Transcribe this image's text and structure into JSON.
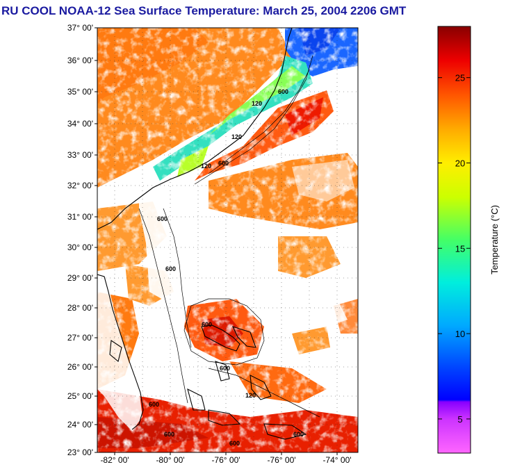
{
  "title": "RU COOL  NOAA-12  Sea Surface Temperature:  March 25, 2004 2206 GMT",
  "latitude_labels": [
    "37° 00'",
    "36° 00'",
    "35° 00'",
    "34° 00'",
    "33° 00'",
    "32° 00'",
    "31° 00'",
    "30° 00'",
    "29° 00'",
    "28° 00'",
    "27° 00'",
    "26° 00'",
    "25° 00'",
    "24° 00'",
    "23° 00'"
  ],
  "longitude_labels": [
    "-82° 00'",
    "-80° 00'",
    "-76° 00'",
    "-76° 00'",
    "-74° 00'"
  ],
  "depth_contour_labels": [
    "600",
    "120",
    "120",
    "600",
    "120",
    "600",
    "600",
    "600",
    "600",
    "600",
    "120",
    "600",
    "600",
    "600"
  ],
  "colorbar": {
    "title": "Temperature (°C)",
    "ticks": [
      {
        "label": "25",
        "value": 25
      },
      {
        "label": "20",
        "value": 20
      },
      {
        "label": "15",
        "value": 15
      },
      {
        "label": "10",
        "value": 10
      },
      {
        "label": "5",
        "value": 5
      }
    ],
    "min": 3,
    "max": 28
  },
  "colors": {
    "title": "#1a1aa0",
    "cloud": "#ffffff",
    "land_outline": "#000000"
  }
}
